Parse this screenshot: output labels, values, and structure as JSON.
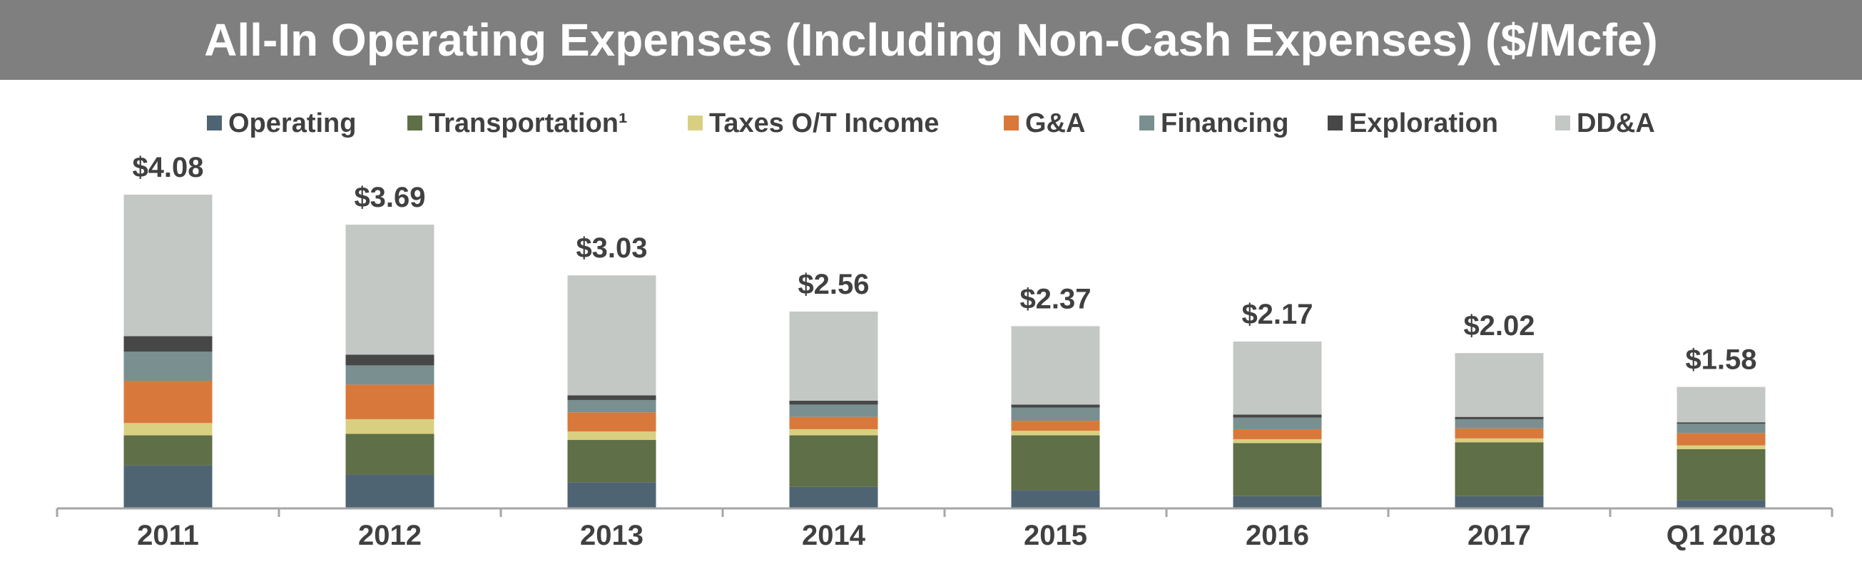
{
  "chart_data": {
    "type": "bar",
    "stacked": true,
    "title": "All-In Operating Expenses (Including Non-Cash Expenses) ($/Mcfe)",
    "categories": [
      "2011",
      "2012",
      "2013",
      "2014",
      "2015",
      "2016",
      "2017",
      "Q1 2018"
    ],
    "totals": [
      "$4.08",
      "$3.69",
      "$3.03",
      "$2.56",
      "$2.37",
      "$2.17",
      "$2.02",
      "$1.58"
    ],
    "total_values": [
      4.08,
      3.69,
      3.03,
      2.56,
      2.37,
      2.17,
      2.02,
      1.58
    ],
    "series": [
      {
        "name": "Operating",
        "color": "#4f6473",
        "values": [
          0.56,
          0.44,
          0.34,
          0.28,
          0.24,
          0.16,
          0.16,
          0.11
        ]
      },
      {
        "name": "Transportation¹",
        "color": "#5f6f47",
        "values": [
          0.39,
          0.53,
          0.55,
          0.67,
          0.71,
          0.69,
          0.7,
          0.66
        ]
      },
      {
        "name": "Taxes O/T Income",
        "color": "#d8d080",
        "values": [
          0.16,
          0.19,
          0.11,
          0.08,
          0.06,
          0.05,
          0.05,
          0.05
        ]
      },
      {
        "name": "G&A",
        "color": "#d8793b",
        "values": [
          0.55,
          0.45,
          0.25,
          0.16,
          0.13,
          0.13,
          0.13,
          0.16
        ]
      },
      {
        "name": "Financing",
        "color": "#7a8f8f",
        "values": [
          0.38,
          0.25,
          0.16,
          0.16,
          0.17,
          0.15,
          0.12,
          0.12
        ]
      },
      {
        "name": "Exploration",
        "color": "#474747",
        "values": [
          0.2,
          0.14,
          0.06,
          0.05,
          0.04,
          0.04,
          0.03,
          0.02
        ]
      },
      {
        "name": "DD&A",
        "color": "#c4c8c5",
        "values": [
          1.84,
          1.69,
          1.56,
          1.16,
          1.02,
          0.95,
          0.83,
          0.46
        ]
      }
    ],
    "xlabel": "",
    "ylabel": "",
    "ylim": [
      0,
      4.08
    ],
    "grid": false,
    "legend_position": "top"
  },
  "colors": {
    "title_bar": "#7f7f7f",
    "title_text": "#ffffff",
    "label_text": "#404040",
    "axis": "#a6a6a6"
  }
}
